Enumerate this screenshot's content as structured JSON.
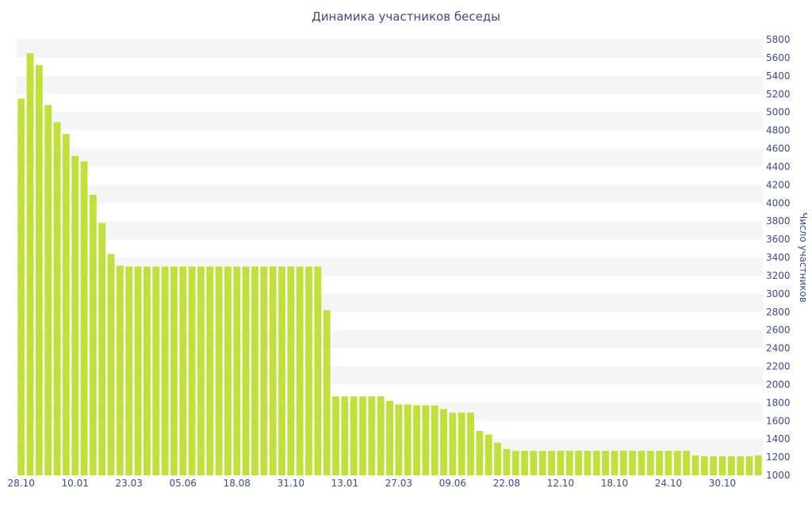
{
  "chart_data": {
    "type": "bar",
    "title": "Динамика участников беседы",
    "xlabel": "",
    "ylabel": "Число участников",
    "ylim": [
      1000,
      5800
    ],
    "ytick_step": 200,
    "grid": "horizontal bands",
    "bar_color": "#c2e03c",
    "band_color": "#f5f5f5",
    "text_color": "#3a4a8c",
    "x_tick_labels": [
      "28.10",
      "10.01",
      "23.03",
      "05.06",
      "18.08",
      "31.10",
      "13.01",
      "27.03",
      "09.06",
      "22.08",
      "12.10",
      "18.10",
      "24.10",
      "30.10"
    ],
    "x_tick_positions": [
      0,
      6,
      12,
      18,
      24,
      30,
      36,
      42,
      48,
      54,
      60,
      66,
      72,
      78
    ],
    "values": [
      5150,
      5650,
      5520,
      5080,
      4890,
      4760,
      4520,
      4460,
      4090,
      3780,
      3440,
      3310,
      3300,
      3300,
      3300,
      3300,
      3300,
      3300,
      3300,
      3300,
      3300,
      3300,
      3300,
      3300,
      3300,
      3300,
      3300,
      3300,
      3300,
      3300,
      3300,
      3300,
      3300,
      3300,
      2820,
      1870,
      1870,
      1870,
      1870,
      1870,
      1870,
      1820,
      1780,
      1780,
      1770,
      1770,
      1770,
      1730,
      1690,
      1690,
      1690,
      1490,
      1450,
      1360,
      1290,
      1270,
      1270,
      1270,
      1270,
      1270,
      1270,
      1270,
      1270,
      1270,
      1270,
      1270,
      1270,
      1270,
      1270,
      1270,
      1270,
      1270,
      1270,
      1270,
      1270,
      1220,
      1210,
      1210,
      1210,
      1210,
      1210,
      1210,
      1220
    ]
  }
}
